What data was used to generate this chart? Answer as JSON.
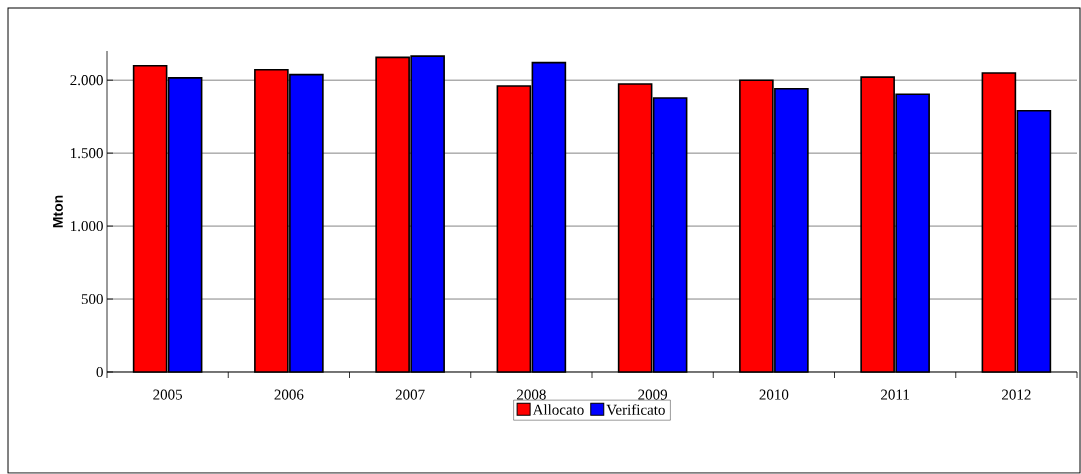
{
  "chart_data": {
    "type": "bar",
    "ylabel": "Mton",
    "categories": [
      "2005",
      "2006",
      "2007",
      "2008",
      "2009",
      "2010",
      "2011",
      "2012"
    ],
    "series": [
      {
        "name": "Allocato",
        "color": "#ff0000",
        "values": [
          2099,
          2071,
          2156,
          1960,
          1974,
          2000,
          2021,
          2049
        ]
      },
      {
        "name": "Verificato",
        "color": "#0000ff",
        "values": [
          2016,
          2038,
          2165,
          2120,
          1878,
          1941,
          1904,
          1790
        ]
      }
    ],
    "ylim": [
      0,
      2200
    ],
    "yticks": [
      0,
      500,
      {
        "value": 1000,
        "label": "1.000"
      },
      {
        "value": 1500,
        "label": "1.500"
      },
      {
        "value": 2000,
        "label": "2.000"
      }
    ],
    "grid": "y",
    "legend": "bottom"
  }
}
